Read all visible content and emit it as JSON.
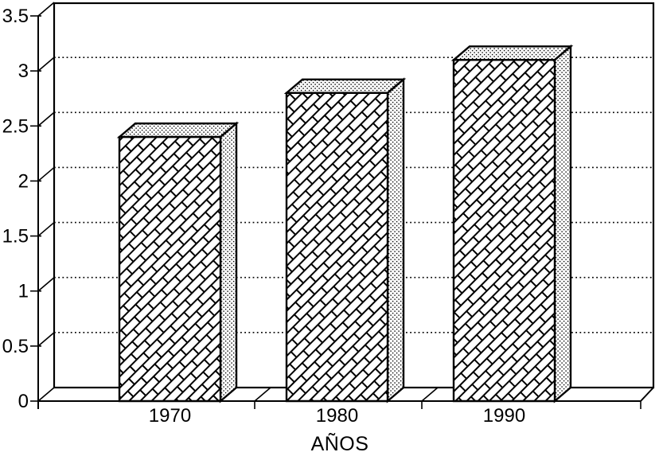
{
  "figure": {
    "background": "#ffffff",
    "ink": "#000000"
  },
  "chart_data": {
    "type": "bar",
    "projection": "3d",
    "title": "",
    "categories": [
      "1970",
      "1980",
      "1990"
    ],
    "values": [
      2.4,
      2.8,
      3.1
    ],
    "xlabel": "AÑOS",
    "ylabel": "",
    "ylim": [
      0,
      3.5
    ],
    "ytick_step": 0.5,
    "ytick_labels": [
      "0",
      "0.5",
      "1",
      "1.5",
      "2",
      "2.5",
      "3",
      "3.5"
    ],
    "grid": "horizontal-dotted-on-back-wall",
    "legend": null,
    "bar_fill": {
      "front_face": "diagonal-brick-hatch",
      "top_face": "stipple-dither",
      "side_face": "stipple-dither"
    }
  }
}
